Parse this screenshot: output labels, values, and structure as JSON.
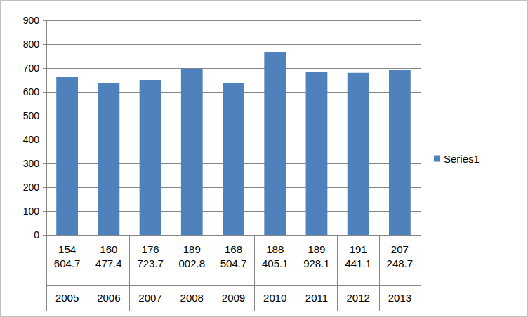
{
  "chart_data": {
    "type": "bar",
    "categories": [
      "154 604.7",
      "160 477.4",
      "176 723.7",
      "189 002.8",
      "168 504.7",
      "188 405.1",
      "189 928.1",
      "191 441.1",
      "207 248.7"
    ],
    "category_groups": [
      "2005",
      "2006",
      "2007",
      "2008",
      "2009",
      "2010",
      "2011",
      "2012",
      "2013"
    ],
    "series": [
      {
        "name": "Series1",
        "color": "#4f81bd",
        "values": [
          662,
          638,
          650,
          698,
          635,
          768,
          683,
          680,
          691
        ]
      }
    ],
    "ylim": [
      0,
      900
    ],
    "yticks": [
      0,
      100,
      200,
      300,
      400,
      500,
      600,
      700,
      800,
      900
    ],
    "grid": true,
    "legend": "right"
  }
}
